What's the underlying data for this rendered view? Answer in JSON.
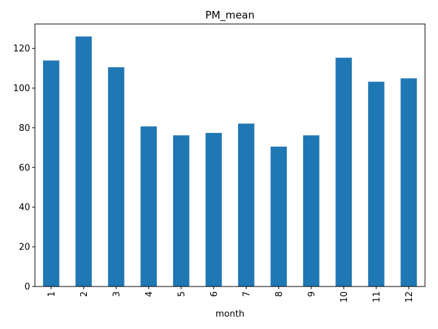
{
  "chart_data": {
    "type": "bar",
    "title": "PM_mean",
    "xlabel": "month",
    "ylabel": "",
    "categories": [
      "1",
      "2",
      "3",
      "4",
      "5",
      "6",
      "7",
      "8",
      "9",
      "10",
      "11",
      "12"
    ],
    "values": [
      113.9,
      126.0,
      110.5,
      80.7,
      76.2,
      77.4,
      82.1,
      70.5,
      76.2,
      115.3,
      103.2,
      104.9
    ],
    "ylim": [
      0,
      132.3
    ],
    "yticks": [
      0,
      20,
      40,
      60,
      80,
      100,
      120
    ],
    "bar_color": "#1f77b4",
    "grid": false,
    "xtick_rotation": "vertical"
  }
}
